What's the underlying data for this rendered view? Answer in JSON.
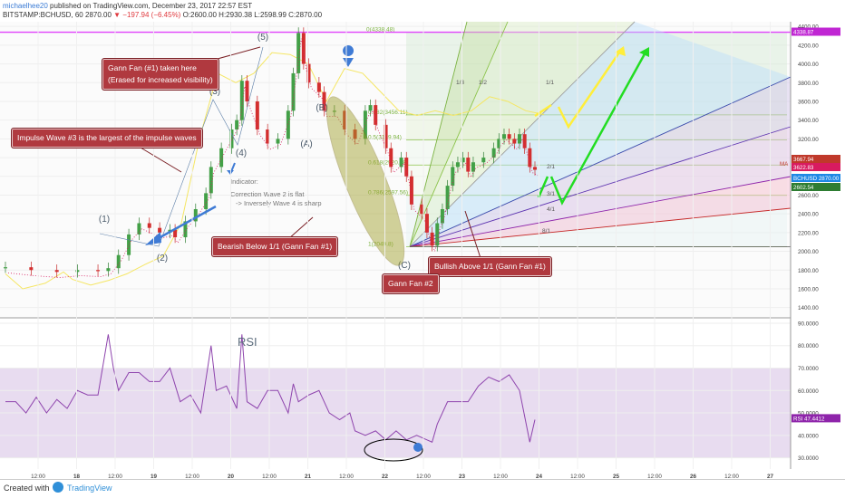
{
  "header": {
    "user": "michaelhee20",
    "published": "published on TradingView.com, December 23, 2017 22:57 EST",
    "symbol_line": "BITSTAMP:BCHUSD, 60",
    "last": "2870.00",
    "change": "▼ −197.94 (−6.45%)",
    "ohlc": "O:2600.00 H:2930.38 L:2598.99 C:2870.00"
  },
  "annotations": {
    "gann1": "Gann Fan (#1) taken here",
    "gann1b": "(Erased for increased visibility)",
    "impulse": "Impulse Wave #3 is the largest of the impulse waves",
    "bearish": "Bearish Below 1/1 (Gann Fan #1)",
    "bullish": "Bullish Above 1/1 (Gann Fan #1)",
    "gann2": "Gann Fan #2",
    "indicator": "Indicator:",
    "correction1": "Correction Wave 2 is flat",
    "correction2": "-> Inversely Wave 4 is sharp",
    "rsi": "RSI"
  },
  "waves": [
    "(1)",
    "(2)",
    "(3)",
    "(4)",
    "(5)",
    "(A)",
    "(B)",
    "(C)"
  ],
  "fib": [
    "0(4338.48)",
    "0.382(3456.11)",
    "0.5(3189.94)",
    "0.618(2920.78)",
    "0.786(2597.56)",
    "1(2049.8)"
  ],
  "fan_ratios": [
    "1/3",
    "1/2",
    "1/1",
    "2/1",
    "3/1",
    "4/1",
    "8/1"
  ],
  "price_axis": [
    "4400.00",
    "4200.00",
    "4000.00",
    "3800.00",
    "3600.00",
    "3400.00",
    "3200.00",
    "3000.00",
    "2800.00",
    "2600.00",
    "2400.00",
    "2200.00",
    "2000.00",
    "1800.00",
    "1600.00",
    "1400.00"
  ],
  "price_badges": {
    "top": "4338.87",
    "ma_label": "MA",
    "ma1": "3667.94",
    "ma2": "3622.83",
    "sym": "BCHUSD",
    "last": "2870.00",
    "b3": "2602.54"
  },
  "rsi_axis": [
    "90.0000",
    "80.0000",
    "70.0000",
    "60.0000",
    "50.0000",
    "40.0000",
    "30.0000"
  ],
  "rsi_badge": {
    "label": "RSI",
    "value": "47.4412"
  },
  "time_axis": [
    "12:00",
    "18",
    "12:00",
    "19",
    "12:00",
    "20",
    "12:00",
    "21",
    "12:00",
    "22",
    "12:00",
    "23",
    "12:00",
    "24",
    "12:00",
    "25",
    "12:00",
    "26",
    "12:00",
    "27"
  ],
  "footer": {
    "created": "Created with",
    "brand": "TradingView"
  },
  "chart_data": {
    "type": "candlestick",
    "ylim": [
      1300,
      4450
    ],
    "rsi_ylim": [
      25,
      92
    ],
    "price_path": [
      [
        0,
        1830
      ],
      [
        5,
        1800
      ],
      [
        10,
        1780
      ],
      [
        14,
        1800
      ],
      [
        18,
        1790
      ],
      [
        20,
        1820
      ],
      [
        22,
        1960
      ],
      [
        24,
        2180
      ],
      [
        26,
        2300
      ],
      [
        28,
        2250
      ],
      [
        30,
        2200
      ],
      [
        32,
        2230
      ],
      [
        33,
        2150
      ],
      [
        35,
        2320
      ],
      [
        37,
        2450
      ],
      [
        39,
        2620
      ],
      [
        40,
        2900
      ],
      [
        42,
        3100
      ],
      [
        44,
        3300
      ],
      [
        45,
        3400
      ],
      [
        46,
        3820
      ],
      [
        47,
        3600
      ],
      [
        49,
        3300
      ],
      [
        51,
        3150
      ],
      [
        53,
        3200
      ],
      [
        55,
        3500
      ],
      [
        56,
        3900
      ],
      [
        57,
        4330
      ],
      [
        58,
        4000
      ],
      [
        59,
        3800
      ],
      [
        61,
        3700
      ],
      [
        62,
        3500
      ],
      [
        64,
        3500
      ],
      [
        66,
        3300
      ],
      [
        68,
        3200
      ],
      [
        70,
        3500
      ],
      [
        71,
        3560
      ],
      [
        72,
        3350
      ],
      [
        74,
        3100
      ],
      [
        75,
        2900
      ],
      [
        77,
        3000
      ],
      [
        78,
        2800
      ],
      [
        79,
        2500
      ],
      [
        81,
        2400
      ],
      [
        82,
        2200
      ],
      [
        83,
        2060
      ],
      [
        84,
        2300
      ],
      [
        85,
        2450
      ],
      [
        86,
        2700
      ],
      [
        87,
        2900
      ],
      [
        88,
        2950
      ],
      [
        89,
        3000
      ],
      [
        90,
        2850
      ],
      [
        91,
        2950
      ],
      [
        93,
        3000
      ],
      [
        95,
        3100
      ],
      [
        96,
        3200
      ],
      [
        97,
        3250
      ],
      [
        98,
        3200
      ],
      [
        99,
        3150
      ],
      [
        100,
        3250
      ],
      [
        101,
        3100
      ],
      [
        102,
        2900
      ],
      [
        103,
        2870
      ]
    ],
    "rsi": [
      [
        0,
        55
      ],
      [
        2,
        55
      ],
      [
        4,
        50
      ],
      [
        6,
        57
      ],
      [
        8,
        50
      ],
      [
        10,
        56
      ],
      [
        12,
        52
      ],
      [
        14,
        60
      ],
      [
        16,
        58
      ],
      [
        18,
        58
      ],
      [
        20,
        85
      ],
      [
        21,
        70
      ],
      [
        22,
        60
      ],
      [
        24,
        68
      ],
      [
        26,
        68
      ],
      [
        28,
        64
      ],
      [
        30,
        64
      ],
      [
        32,
        70
      ],
      [
        34,
        55
      ],
      [
        36,
        58
      ],
      [
        38,
        50
      ],
      [
        40,
        80
      ],
      [
        41,
        60
      ],
      [
        43,
        62
      ],
      [
        45,
        52
      ],
      [
        46,
        85
      ],
      [
        47,
        55
      ],
      [
        49,
        52
      ],
      [
        51,
        60
      ],
      [
        53,
        60
      ],
      [
        55,
        50
      ],
      [
        56,
        63
      ],
      [
        57,
        55
      ],
      [
        59,
        58
      ],
      [
        61,
        60
      ],
      [
        63,
        50
      ],
      [
        65,
        47
      ],
      [
        67,
        50
      ],
      [
        68,
        42
      ],
      [
        70,
        40
      ],
      [
        72,
        42
      ],
      [
        74,
        38
      ],
      [
        76,
        42
      ],
      [
        78,
        38
      ],
      [
        80,
        40
      ],
      [
        82,
        38
      ],
      [
        83,
        37
      ],
      [
        84,
        45
      ],
      [
        86,
        55
      ],
      [
        88,
        55
      ],
      [
        90,
        55
      ],
      [
        92,
        62
      ],
      [
        94,
        66
      ],
      [
        96,
        64
      ],
      [
        98,
        67
      ],
      [
        100,
        60
      ],
      [
        102,
        37
      ],
      [
        103,
        47
      ]
    ]
  }
}
